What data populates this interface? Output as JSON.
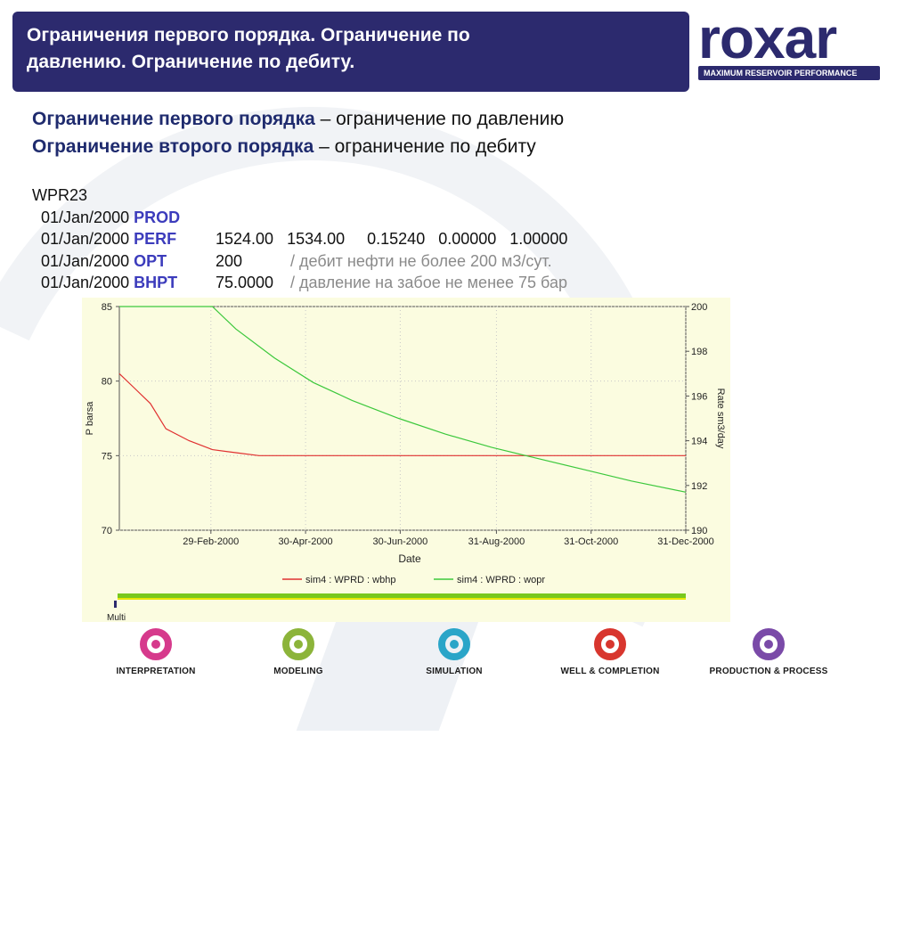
{
  "header": {
    "title_line1": "Ограничения первого порядка. Ограничение по",
    "title_line2": "давлению. Ограничение по дебиту."
  },
  "logo": {
    "word": "roxar",
    "tagline": "MAXIMUM RESERVOIR PERFORMANCE",
    "color": "#2c2a6e"
  },
  "definitions": [
    {
      "term": "Ограничение первого порядка",
      "text": " – ограничение по давлению"
    },
    {
      "term": "Ограничение второго порядка",
      "text": " – ограничение по дебиту"
    }
  ],
  "code": {
    "well": "WPR23",
    "rows": [
      {
        "date": "01/Jan/2000",
        "kw": "PROD",
        "values": "",
        "comment": ""
      },
      {
        "date": "01/Jan/2000",
        "kw": "PERF",
        "values": "1524.00   1534.00     0.15240   0.00000   1.00000",
        "comment": ""
      },
      {
        "date": "01/Jan/2000",
        "kw": "OPT",
        "values": "200",
        "comment": "/ дебит нефти не более 200 м3/сут."
      },
      {
        "date": "01/Jan/2000",
        "kw": "BHPT",
        "values": "75.0000",
        "comment": "/ давление на забое не менее 75 бар"
      }
    ]
  },
  "chart_data": {
    "type": "line",
    "xlabel": "Date",
    "ylabel_left": "P   barsa",
    "ylabel_right": "Rate   sm3/day",
    "x_ticks": [
      "29-Feb-2000",
      "30-Apr-2000",
      "30-Jun-2000",
      "31-Aug-2000",
      "31-Oct-2000",
      "31-Dec-2000"
    ],
    "x_range_days": [
      0,
      365
    ],
    "x_tick_days": [
      59,
      120,
      181,
      243,
      304,
      365
    ],
    "y_left": {
      "ticks": [
        70,
        75,
        80,
        85
      ],
      "ylim": [
        70,
        85
      ]
    },
    "y_right": {
      "ticks": [
        190,
        192,
        194,
        196,
        198,
        200
      ],
      "ylim": [
        190,
        200
      ]
    },
    "series": [
      {
        "name": "sim4 : WPRD : wbhp",
        "axis": "left",
        "color": "#e03030",
        "points": [
          [
            0,
            80.5
          ],
          [
            10,
            79.5
          ],
          [
            20,
            78.5
          ],
          [
            30,
            76.8
          ],
          [
            45,
            76.0
          ],
          [
            60,
            75.4
          ],
          [
            75,
            75.2
          ],
          [
            90,
            75.0
          ],
          [
            150,
            75.0
          ],
          [
            250,
            75.0
          ],
          [
            365,
            75.0
          ]
        ]
      },
      {
        "name": "sim4 : WPRD : wopr",
        "axis": "right",
        "color": "#3cc83c",
        "points": [
          [
            0,
            200
          ],
          [
            60,
            200
          ],
          [
            75,
            199.0
          ],
          [
            100,
            197.7
          ],
          [
            125,
            196.6
          ],
          [
            150,
            195.8
          ],
          [
            180,
            195.0
          ],
          [
            210,
            194.3
          ],
          [
            240,
            193.7
          ],
          [
            270,
            193.2
          ],
          [
            300,
            192.7
          ],
          [
            330,
            192.2
          ],
          [
            365,
            191.7
          ]
        ]
      }
    ],
    "bottom_label": "Multi",
    "grid": true,
    "legend_position": "bottom"
  },
  "nav": [
    {
      "label": "INTERPRETATION",
      "color": "#d63a8c"
    },
    {
      "label": "MODELING",
      "color": "#8cb43a"
    },
    {
      "label": "SIMULATION",
      "color": "#2aa5c8"
    },
    {
      "label": "WELL & COMPLETION",
      "color": "#d8362e"
    },
    {
      "label": "PRODUCTION & PROCESS",
      "color": "#7a4aa8"
    }
  ]
}
